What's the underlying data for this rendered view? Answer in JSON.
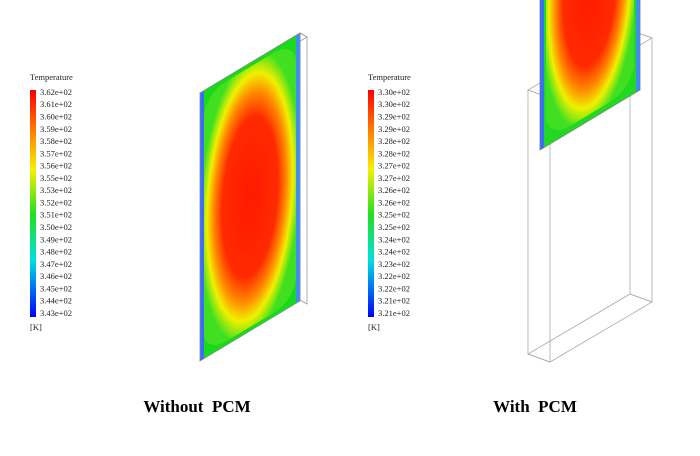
{
  "panels": [
    {
      "legend_title": "Temperature",
      "labels": [
        "3.62e+02",
        "3.61e+02",
        "3.60e+02",
        "3.59e+02",
        "3.58e+02",
        "3.57e+02",
        "3.56e+02",
        "3.55e+02",
        "3.53e+02",
        "3.52e+02",
        "3.51e+02",
        "3.50e+02",
        "3.49e+02",
        "3.48e+02",
        "3.47e+02",
        "3.46e+02",
        "3.45e+02",
        "3.44e+02",
        "3.43e+02"
      ],
      "unit": "[K]",
      "caption": "Without  PCM"
    },
    {
      "legend_title": "Temperature",
      "labels": [
        "3.30e+02",
        "3.30e+02",
        "3.29e+02",
        "3.29e+02",
        "3.28e+02",
        "3.28e+02",
        "3.27e+02",
        "3.27e+02",
        "3.26e+02",
        "3.26e+02",
        "3.25e+02",
        "3.25e+02",
        "3.24e+02",
        "3.24e+02",
        "3.23e+02",
        "3.22e+02",
        "3.22e+02",
        "3.21e+02",
        "3.21e+02"
      ],
      "unit": "[K]",
      "caption": "With  PCM"
    }
  ]
}
